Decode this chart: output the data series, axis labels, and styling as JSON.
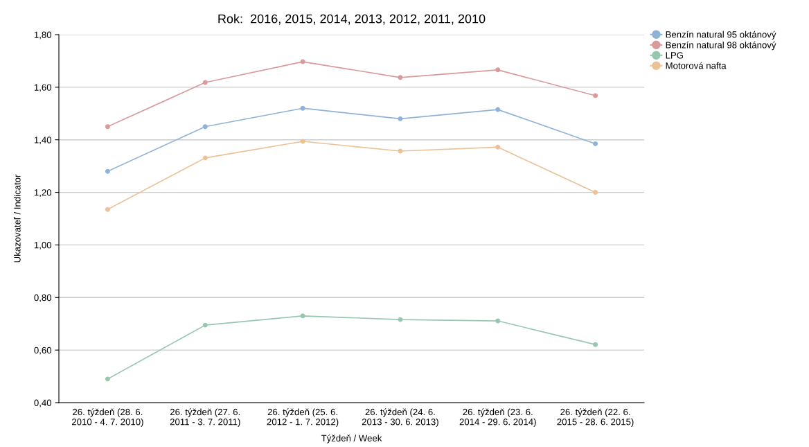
{
  "chart_data": {
    "type": "line",
    "title": "Rok:  2016, 2015, 2014, 2013, 2012, 2011, 2010",
    "xlabel": "Týždeň / Week",
    "ylabel": "Ukazovateľ / Indicator",
    "categories": [
      "26. týždeň (28. 6.\n2010 - 4. 7. 2010)",
      "26. týždeň (27. 6.\n2011 - 3. 7. 2011)",
      "26. týždeň (25. 6.\n2012 - 1. 7. 2012)",
      "26. týždeň (24. 6.\n2013 - 30. 6. 2013)",
      "26. týždeň (23. 6.\n2014 - 29. 6. 2014)",
      "26. týždeň (22. 6.\n2015 - 28. 6. 2015)"
    ],
    "series": [
      {
        "name": "Benzín natural 95 oktánový",
        "color": "#8fb2d6",
        "values": [
          1.28,
          1.45,
          1.52,
          1.48,
          1.515,
          1.385
        ]
      },
      {
        "name": "Benzín natural 98 oktánový",
        "color": "#d99a9a",
        "values": [
          1.45,
          1.618,
          1.697,
          1.637,
          1.666,
          1.568
        ]
      },
      {
        "name": "LPG",
        "color": "#98c7b0",
        "values": [
          0.49,
          0.695,
          0.73,
          0.716,
          0.711,
          0.621
        ]
      },
      {
        "name": "Motorová nafta",
        "color": "#ebc196",
        "values": [
          1.135,
          1.331,
          1.394,
          1.357,
          1.372,
          1.2
        ]
      }
    ],
    "ylim": [
      0.4,
      1.8
    ],
    "yticks": [
      {
        "value": 0.4,
        "label": "0,40"
      },
      {
        "value": 0.6,
        "label": "0,60"
      },
      {
        "value": 0.8,
        "label": "0,80"
      },
      {
        "value": 1.0,
        "label": "1,00"
      },
      {
        "value": 1.2,
        "label": "1,20"
      },
      {
        "value": 1.4,
        "label": "1,40"
      },
      {
        "value": 1.6,
        "label": "1,60"
      },
      {
        "value": 1.8,
        "label": "1,80"
      }
    ],
    "grid": "y",
    "legend": "top right",
    "marker": "circle",
    "line_style": "solid"
  }
}
